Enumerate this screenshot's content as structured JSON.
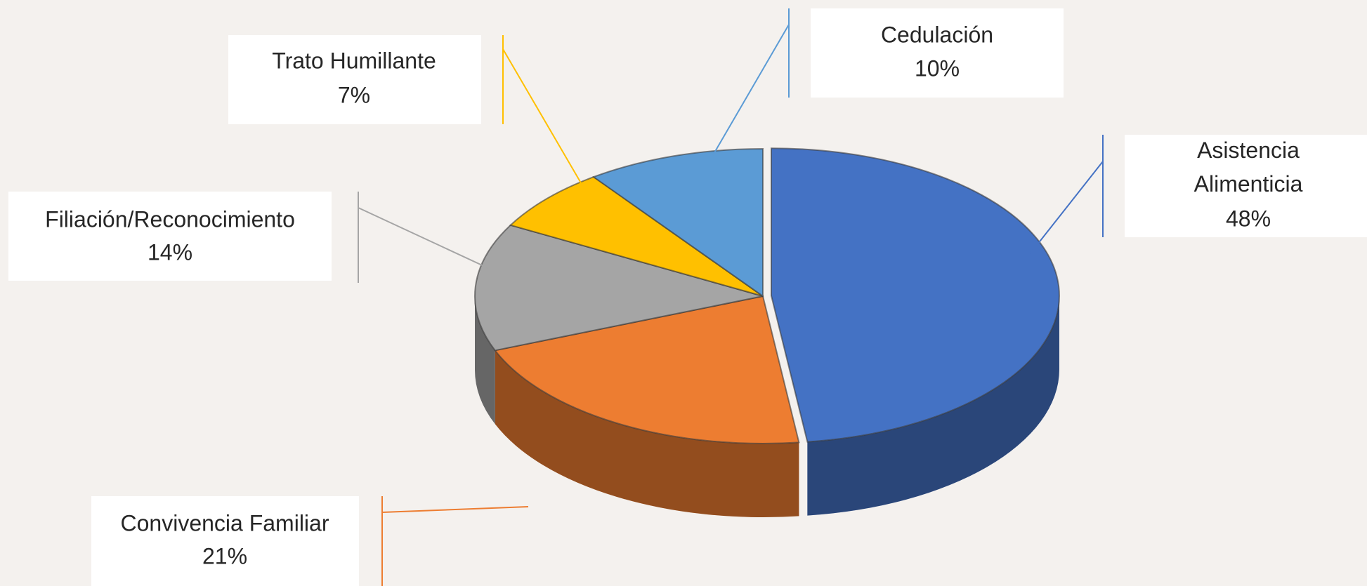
{
  "chart_data": {
    "type": "pie",
    "categories": [
      "Asistencia Alimenticia",
      "Convivencia Familiar",
      "Filiación/Reconocimiento",
      "Trato Humillante",
      "Cedulación"
    ],
    "values": [
      48,
      21,
      14,
      7,
      10
    ],
    "value_labels": [
      "48%",
      "21%",
      "14%",
      "7%",
      "10%"
    ],
    "colors": [
      "#4472c4",
      "#ed7d31",
      "#a5a5a5",
      "#ffc000",
      "#5b9bd5"
    ]
  }
}
